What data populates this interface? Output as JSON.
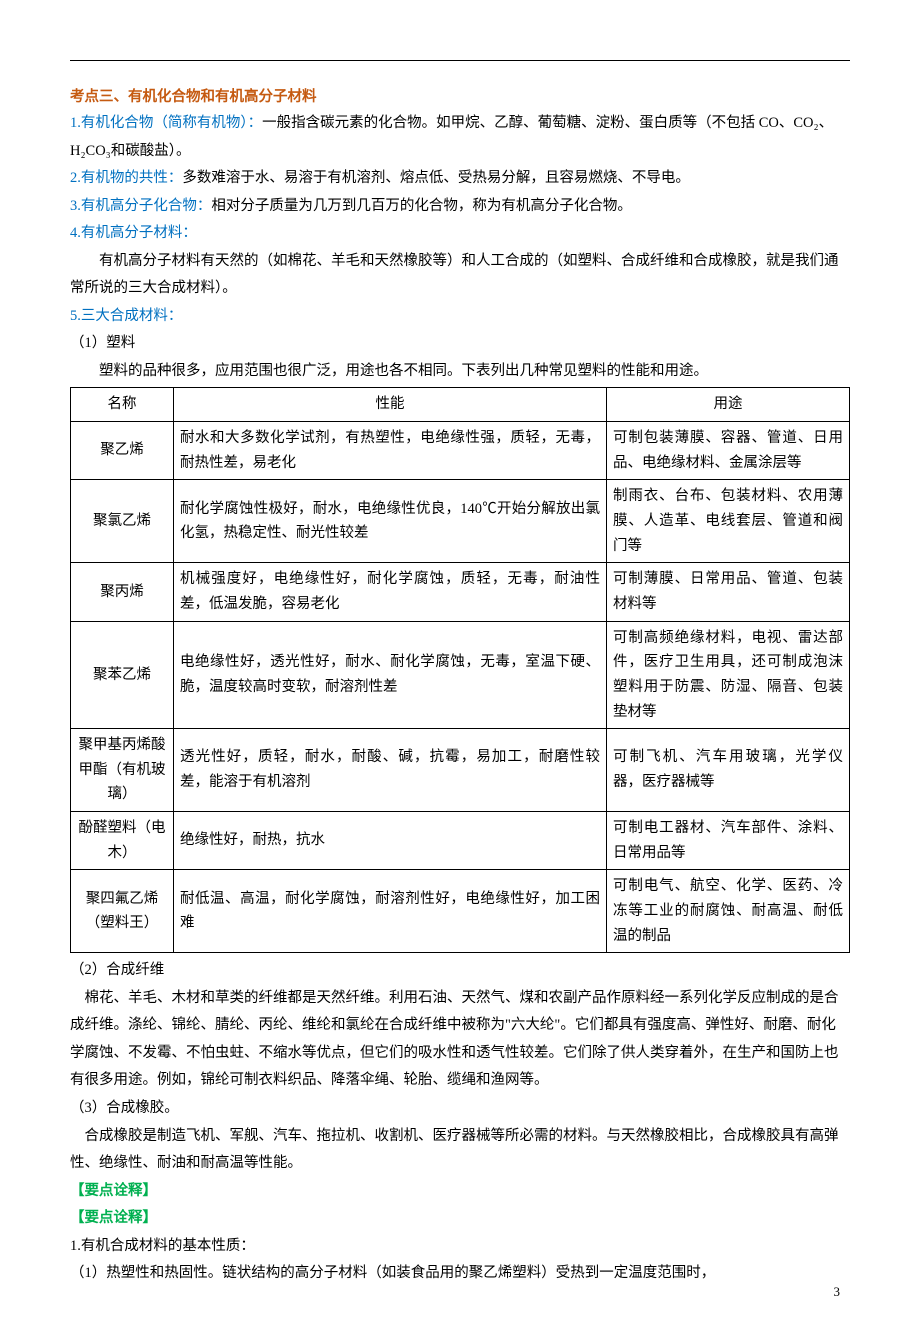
{
  "heading": "考点三、有机化合物和有机高分子材料",
  "points": {
    "p1_label": "1.有机化合物（简称有机物）：",
    "p1_text": "一般指含碳元素的化合物。如甲烷、乙醇、葡萄糖、淀粉、蛋白质等（不包括 CO、CO₂、H₂CO₃和碳酸盐）。",
    "p2_label": "2.有机物的共性：",
    "p2_text": "多数难溶于水、易溶于有机溶剂、熔点低、受热易分解，且容易燃烧、不导电。",
    "p3_label": "3.有机高分子化合物：",
    "p3_text": "相对分子质量为几万到几百万的化合物，称为有机高分子化合物。",
    "p4_label": "4.有机高分子材料：",
    "p4_text": "有机高分子材料有天然的（如棉花、羊毛和天然橡胶等）和人工合成的（如塑料、合成纤维和合成橡胶，就是我们通常所说的三大合成材料）。",
    "p5_label": "5.三大合成材料：",
    "p5_sub1_label": "（1）塑料",
    "p5_sub1_intro": "塑料的品种很多，应用范围也很广泛，用途也各不相同。下表列出几种常见塑料的性能和用途。",
    "p5_sub2_label": "（2）合成纤维",
    "p5_sub2_text": "棉花、羊毛、木材和草类的纤维都是天然纤维。利用石油、天然气、煤和农副产品作原料经一系列化学反应制成的是合成纤维。涤纶、锦纶、腈纶、丙纶、维纶和氯纶在合成纤维中被称为\"六大纶\"。它们都具有强度高、弹性好、耐磨、耐化学腐蚀、不发霉、不怕虫蛀、不缩水等优点，但它们的吸水性和透气性较差。它们除了供人类穿着外，在生产和国防上也有很多用途。例如，锦纶可制衣料织品、降落伞绳、轮胎、缆绳和渔网等。",
    "p5_sub3_label": "（3）合成橡胶。",
    "p5_sub3_text": "合成橡胶是制造飞机、军舰、汽车、拖拉机、收割机、医疗器械等所必需的材料。与天然橡胶相比，合成橡胶具有高弹性、绝缘性、耐油和耐高温等性能。"
  },
  "table": {
    "headers": [
      "名称",
      "性能",
      "用途"
    ],
    "rows": [
      {
        "name": "聚乙烯",
        "perf": "耐水和大多数化学试剂，有热塑性，电绝缘性强，质轻，无毒，耐热性差，易老化",
        "use": "可制包装薄膜、容器、管道、日用品、电绝缘材料、金属涂层等"
      },
      {
        "name": "聚氯乙烯",
        "perf": "耐化学腐蚀性极好，耐水，电绝缘性优良，140℃开始分解放出氯化氢，热稳定性、耐光性较差",
        "use": "制雨衣、台布、包装材料、农用薄膜、人造革、电线套层、管道和阀门等"
      },
      {
        "name": "聚丙烯",
        "perf": "机械强度好，电绝缘性好，耐化学腐蚀，质轻，无毒，耐油性差，低温发脆，容易老化",
        "use": "可制薄膜、日常用品、管道、包装材料等"
      },
      {
        "name": "聚苯乙烯",
        "perf": "电绝缘性好，透光性好，耐水、耐化学腐蚀，无毒，室温下硬、脆，温度较高时变软，耐溶剂性差",
        "use": "可制高频绝缘材料，电视、雷达部件，医疗卫生用具，还可制成泡沫塑料用于防震、防湿、隔音、包装垫材等"
      },
      {
        "name": "聚甲基丙烯酸甲酯（有机玻璃）",
        "perf": "透光性好，质轻，耐水，耐酸、碱，抗霉，易加工，耐磨性较差，能溶于有机溶剂",
        "use": "可制飞机、汽车用玻璃，光学仪器，医疗器械等"
      },
      {
        "name": "酚醛塑料（电木）",
        "perf": "绝缘性好，耐热，抗水",
        "use": "可制电工器材、汽车部件、涂料、日常用品等"
      },
      {
        "name": "聚四氟乙烯（塑料王）",
        "perf": "耐低温、高温，耐化学腐蚀，耐溶剂性好，电绝缘性好，加工困难",
        "use": "可制电气、航空、化学、医药、冷冻等工业的耐腐蚀、耐高温、耐低温的制品"
      }
    ]
  },
  "green1": "【要点诠释】",
  "green2": "【要点诠释】",
  "after": {
    "l1": "1.有机合成材料的基本性质：",
    "l2": "（1）热塑性和热固性。链状结构的高分子材料（如装食品用的聚乙烯塑料）受热到一定温度范围时，"
  },
  "page_number": "3",
  "colors": {
    "orange": "#c55a11",
    "blue": "#0070c0",
    "green": "#00b050",
    "black": "#000000"
  }
}
